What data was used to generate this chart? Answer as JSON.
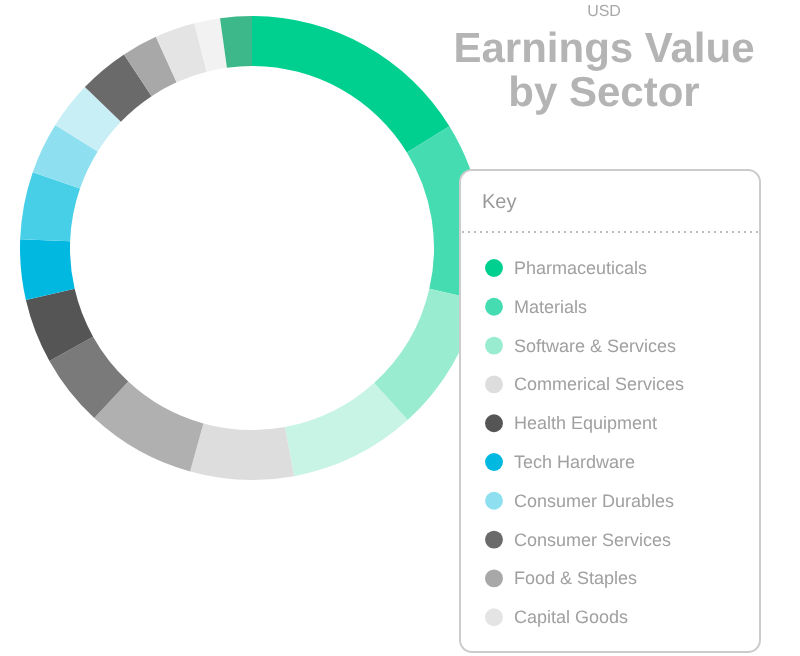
{
  "chart_data": {
    "type": "donut",
    "title": "Earnings Value by Sector",
    "subtitle": "USD",
    "legend_title": "Key",
    "legend": "right",
    "categories": [
      "Pharmaceuticals",
      "Materials",
      "Software & Services",
      null,
      "Commerical Services",
      null,
      null,
      "Health Equipment",
      "Tech Hardware",
      null,
      "Consumer Durables",
      null,
      "Consumer Services",
      "Food & Staples",
      "Capital Goods",
      null,
      null
    ],
    "values": [
      16.2,
      12.4,
      9.7,
      8.8,
      7.2,
      7.6,
      5.0,
      4.5,
      4.2,
      4.7,
      3.6,
      3.3,
      3.5,
      2.5,
      2.8,
      1.8,
      2.2
    ],
    "colors": [
      "#00d08f",
      "#44dcb0",
      "#99ecd0",
      "#c8f4e6",
      "#dddddd",
      "#b0b0b0",
      "#7a7a7a",
      "#555555",
      "#00b8e0",
      "#48cfe8",
      "#8ee0f0",
      "#c8eef6",
      "#6a6a6a",
      "#a8a8a8",
      "#e4e4e4",
      "#f2f2f2",
      "#3cb88a"
    ]
  }
}
